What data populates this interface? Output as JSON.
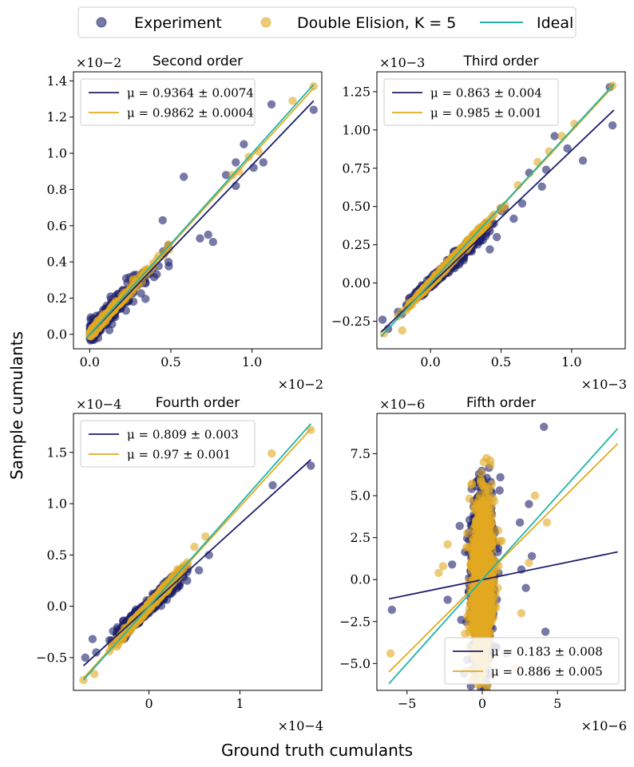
{
  "figure": {
    "xlabel": "Ground truth cumulants",
    "ylabel": "Sample cumulants"
  },
  "legend": {
    "items": [
      {
        "label": "Experiment",
        "kind": "marker",
        "color": "#1c1f6b"
      },
      {
        "label": "Double Elision, K = 5",
        "kind": "marker",
        "color": "#e1a921"
      },
      {
        "label": "Ideal",
        "kind": "line",
        "color": "#22b5a6"
      }
    ]
  },
  "colors": {
    "experiment": "#1c1f6b",
    "elision": "#e1a921",
    "ideal": "#22b5a6"
  },
  "chart_data": [
    {
      "type": "scatter",
      "title": "Second order",
      "scale_label": "×10−2",
      "xlim": [
        -0.1,
        1.43
      ],
      "ylim": [
        -0.08,
        1.45
      ],
      "xticks": [
        {
          "v": 0.0,
          "label": "0.0"
        },
        {
          "v": 0.5,
          "label": "0.5"
        },
        {
          "v": 1.0,
          "label": "1.0"
        }
      ],
      "yticks": [
        {
          "v": 0.0,
          "label": "0.0"
        },
        {
          "v": 0.2,
          "label": "0.2"
        },
        {
          "v": 0.4,
          "label": "0.4"
        },
        {
          "v": 0.6,
          "label": "0.6"
        },
        {
          "v": 0.8,
          "label": "0.8"
        },
        {
          "v": 1.0,
          "label": "1.0"
        },
        {
          "v": 1.2,
          "label": "1.2"
        },
        {
          "v": 1.4,
          "label": "1.4"
        }
      ],
      "legend_position": "top-left",
      "fits": [
        {
          "series": "experiment",
          "label": "μ = 0.9364 ± 0.0074",
          "x": [
            -0.02,
            1.38
          ],
          "y": [
            -0.02,
            1.29
          ]
        },
        {
          "series": "elision",
          "label": "μ = 0.9862 ± 0.0004",
          "x": [
            -0.02,
            1.38
          ],
          "y": [
            -0.02,
            1.36
          ]
        }
      ],
      "ideal": {
        "x": [
          -0.02,
          1.38
        ],
        "y": [
          -0.02,
          1.38
        ]
      },
      "scatter": {
        "seed": 11,
        "n": 420,
        "mode": "exp",
        "spread": 0.22,
        "noise_exp": 0.06,
        "noise_eli": 0.02,
        "slope_exp": 0.9364,
        "slope_eli": 0.9862,
        "extra_experiment": [
          [
            1.38,
            1.24
          ],
          [
            1.12,
            1.27
          ],
          [
            0.95,
            1.05
          ],
          [
            0.9,
            0.95
          ],
          [
            1.01,
            0.92
          ],
          [
            0.73,
            0.55
          ],
          [
            0.76,
            0.51
          ],
          [
            0.68,
            0.53
          ],
          [
            0.58,
            0.87
          ],
          [
            0.9,
            0.82
          ],
          [
            1.07,
            0.95
          ],
          [
            0.84,
            0.88
          ],
          [
            0.45,
            0.63
          ]
        ],
        "extra_elision": [
          [
            1.38,
            1.37
          ],
          [
            1.25,
            1.29
          ],
          [
            1.04,
            1.01
          ],
          [
            0.98,
            0.98
          ],
          [
            0.92,
            0.9
          ],
          [
            0.88,
            0.88
          ]
        ]
      }
    },
    {
      "type": "scatter",
      "title": "Third order",
      "scale_label": "×10−3",
      "xlim": [
        -0.38,
        1.38
      ],
      "ylim": [
        -0.43,
        1.38
      ],
      "xticks": [
        {
          "v": 0.0,
          "label": "0.0"
        },
        {
          "v": 0.5,
          "label": "0.5"
        },
        {
          "v": 1.0,
          "label": "1.0"
        }
      ],
      "yticks": [
        {
          "v": -0.25,
          "label": "−0.25"
        },
        {
          "v": 0.0,
          "label": "0.00"
        },
        {
          "v": 0.25,
          "label": "0.25"
        },
        {
          "v": 0.5,
          "label": "0.50"
        },
        {
          "v": 0.75,
          "label": "0.75"
        },
        {
          "v": 1.0,
          "label": "1.00"
        },
        {
          "v": 1.25,
          "label": "1.25"
        }
      ],
      "legend_position": "top-left",
      "fits": [
        {
          "series": "experiment",
          "label": "μ = 0.863 ± 0.004",
          "x": [
            -0.35,
            1.3
          ],
          "y": [
            -0.32,
            1.13
          ]
        },
        {
          "series": "elision",
          "label": "μ = 0.985 ± 0.001",
          "x": [
            -0.35,
            1.3
          ],
          "y": [
            -0.35,
            1.29
          ]
        }
      ],
      "ideal": {
        "x": [
          -0.35,
          1.3
        ],
        "y": [
          -0.35,
          1.3
        ]
      },
      "scatter": {
        "seed": 23,
        "n": 650,
        "mode": "skew",
        "spread": 0.1,
        "noise_exp": 0.035,
        "noise_eli": 0.015,
        "slope_exp": 0.863,
        "slope_eli": 0.985,
        "extra_experiment": [
          [
            1.29,
            1.03
          ],
          [
            1.27,
            1.28
          ],
          [
            1.08,
            0.8
          ],
          [
            0.97,
            0.88
          ],
          [
            0.82,
            0.74
          ],
          [
            0.79,
            0.63
          ],
          [
            0.65,
            0.52
          ],
          [
            0.59,
            0.42
          ],
          [
            0.47,
            0.3
          ],
          [
            0.42,
            0.22
          ],
          [
            -0.3,
            -0.3
          ],
          [
            -0.34,
            -0.24
          ],
          [
            0.7,
            0.72
          ],
          [
            0.88,
            0.96
          ]
        ],
        "extra_elision": [
          [
            1.29,
            1.29
          ],
          [
            1.02,
            1.04
          ],
          [
            0.93,
            0.96
          ],
          [
            0.84,
            0.86
          ],
          [
            0.76,
            0.79
          ],
          [
            0.62,
            0.64
          ],
          [
            -0.33,
            -0.33
          ],
          [
            -0.2,
            -0.31
          ]
        ]
      }
    },
    {
      "type": "scatter",
      "title": "Fourth order",
      "scale_label": "×10−4",
      "xlim": [
        -0.83,
        1.9
      ],
      "ylim": [
        -0.82,
        1.88
      ],
      "xticks": [
        {
          "v": 0,
          "label": "0"
        },
        {
          "v": 1,
          "label": "1"
        }
      ],
      "yticks": [
        {
          "v": -0.5,
          "label": "−0.5"
        },
        {
          "v": 0.0,
          "label": "0.0"
        },
        {
          "v": 0.5,
          "label": "0.5"
        },
        {
          "v": 1.0,
          "label": "1.0"
        },
        {
          "v": 1.5,
          "label": "1.5"
        }
      ],
      "legend_position": "top-left",
      "fits": [
        {
          "series": "experiment",
          "label": "μ = 0.809 ± 0.003",
          "x": [
            -0.72,
            1.78
          ],
          "y": [
            -0.58,
            1.43
          ]
        },
        {
          "series": "elision",
          "label": "μ = 0.97 ± 0.001",
          "x": [
            -0.72,
            1.78
          ],
          "y": [
            -0.7,
            1.73
          ]
        }
      ],
      "ideal": {
        "x": [
          -0.72,
          1.78
        ],
        "y": [
          -0.72,
          1.78
        ]
      },
      "scatter": {
        "seed": 37,
        "n": 900,
        "mode": "sym",
        "spread": 0.14,
        "noise_exp": 0.06,
        "noise_eli": 0.03,
        "slope_exp": 0.809,
        "slope_eli": 0.97,
        "extra_experiment": [
          [
            1.78,
            1.37
          ],
          [
            1.36,
            1.18
          ],
          [
            0.66,
            0.5
          ],
          [
            0.55,
            0.35
          ],
          [
            -0.62,
            -0.32
          ],
          [
            -0.7,
            -0.5
          ],
          [
            -0.58,
            -0.45
          ],
          [
            0.42,
            0.25
          ],
          [
            -0.35,
            -0.28
          ]
        ],
        "extra_elision": [
          [
            1.78,
            1.72
          ],
          [
            1.35,
            1.49
          ],
          [
            0.62,
            0.68
          ],
          [
            -0.72,
            -0.72
          ],
          [
            -0.6,
            -0.66
          ],
          [
            0.5,
            0.58
          ]
        ]
      }
    },
    {
      "type": "scatter",
      "title": "Fifth order",
      "scale_label": "×10−6",
      "xlim": [
        -7.0,
        9.5
      ],
      "ylim": [
        -6.6,
        9.9
      ],
      "xticks": [
        {
          "v": -5,
          "label": "−5"
        },
        {
          "v": 0,
          "label": "0"
        },
        {
          "v": 5,
          "label": "5"
        }
      ],
      "yticks": [
        {
          "v": -5.0,
          "label": "−5.0"
        },
        {
          "v": -2.5,
          "label": "−2.5"
        },
        {
          "v": 0.0,
          "label": "0.0"
        },
        {
          "v": 2.5,
          "label": "2.5"
        },
        {
          "v": 5.0,
          "label": "5.0"
        },
        {
          "v": 7.5,
          "label": "7.5"
        }
      ],
      "legend_position": "bottom-right",
      "fits": [
        {
          "series": "experiment",
          "label": "μ = 0.183 ± 0.008",
          "x": [
            -6.2,
            9.0
          ],
          "y": [
            -1.15,
            1.65
          ]
        },
        {
          "series": "elision",
          "label": "μ = 0.886 ± 0.005",
          "x": [
            -6.2,
            9.0
          ],
          "y": [
            -5.5,
            8.1
          ]
        }
      ],
      "ideal": {
        "x": [
          -6.2,
          9.0
        ],
        "y": [
          -6.2,
          9.0
        ]
      },
      "scatter": {
        "seed": 53,
        "n": 1400,
        "mode": "vertical",
        "spread": 0.35,
        "noise_exp": 2.4,
        "noise_eli": 2.3,
        "slope_exp": 0.183,
        "slope_eli": 0.886,
        "extra_experiment": [
          [
            4.1,
            9.1
          ],
          [
            -6.0,
            -1.8
          ],
          [
            4.2,
            -3.1
          ],
          [
            3.1,
            4.5
          ],
          [
            2.5,
            3.4
          ],
          [
            -1.5,
            3.2
          ],
          [
            -1.4,
            -2.4
          ],
          [
            1.6,
            -4.4
          ],
          [
            -1.2,
            -5.6
          ],
          [
            2.9,
            -0.5
          ],
          [
            3.3,
            1.4
          ],
          [
            -2.3,
            -1.2
          ],
          [
            1.2,
            6.1
          ],
          [
            -0.7,
            5.4
          ],
          [
            2.6,
            0.6
          ],
          [
            -2.0,
            0.9
          ]
        ],
        "extra_elision": [
          [
            -6.1,
            -4.4
          ],
          [
            3.5,
            5.0
          ],
          [
            4.3,
            3.4
          ],
          [
            3.1,
            1.0
          ],
          [
            -2.9,
            0.4
          ],
          [
            -2.6,
            0.8
          ],
          [
            2.2,
            -5.3
          ],
          [
            -1.0,
            -5.4
          ],
          [
            0.1,
            7.0
          ],
          [
            1.3,
            2.3
          ],
          [
            -2.3,
            2.1
          ],
          [
            2.6,
            -2.0
          ]
        ]
      }
    }
  ]
}
